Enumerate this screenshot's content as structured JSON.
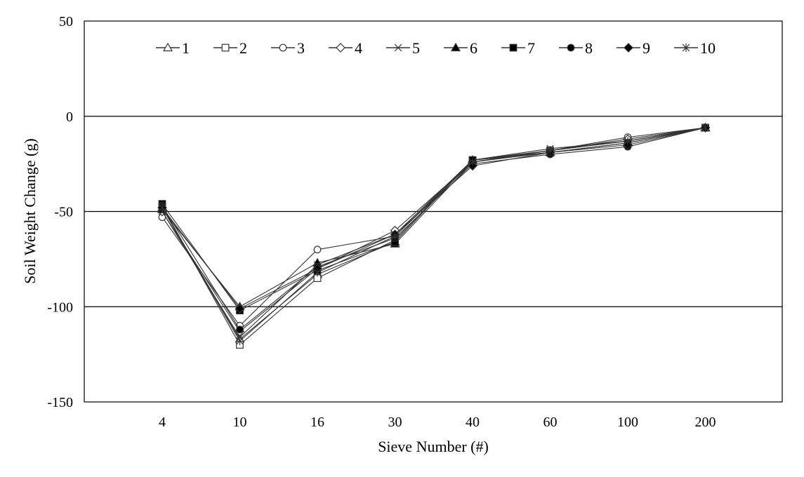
{
  "chart_data": {
    "type": "line",
    "title": "",
    "xlabel": "Sieve Number (#)",
    "ylabel": "Soil Weight Change (g)",
    "categories": [
      "4",
      "10",
      "16",
      "30",
      "40",
      "60",
      "100",
      "200"
    ],
    "ylim": [
      -150,
      50
    ],
    "yticks": [
      50,
      0,
      -50,
      -100,
      -150
    ],
    "grid": "horizontal",
    "legend_position": "top",
    "line_color": "#333333",
    "series": [
      {
        "name": "1",
        "marker": "triangle-open",
        "values": [
          -48,
          -117,
          -83,
          -66,
          -23,
          -19,
          -14,
          -6
        ]
      },
      {
        "name": "2",
        "marker": "square-open",
        "values": [
          -47,
          -120,
          -85,
          -65,
          -23,
          -18,
          -13,
          -6
        ]
      },
      {
        "name": "3",
        "marker": "circle-open",
        "values": [
          -53,
          -110,
          -70,
          -63,
          -23,
          -18,
          -11,
          -6
        ]
      },
      {
        "name": "4",
        "marker": "diamond-open",
        "values": [
          -50,
          -113,
          -80,
          -60,
          -24,
          -18,
          -12,
          -6
        ]
      },
      {
        "name": "5",
        "marker": "x",
        "values": [
          -50,
          -116,
          -78,
          -62,
          -23,
          -17,
          -13,
          -6
        ]
      },
      {
        "name": "6",
        "marker": "triangle",
        "values": [
          -49,
          -100,
          -77,
          -67,
          -24,
          -19,
          -14,
          -6
        ]
      },
      {
        "name": "7",
        "marker": "square",
        "values": [
          -46,
          -102,
          -81,
          -66,
          -23,
          -19,
          -14,
          -6
        ]
      },
      {
        "name": "8",
        "marker": "circle",
        "values": [
          -47,
          -112,
          -79,
          -64,
          -25,
          -20,
          -16,
          -6
        ]
      },
      {
        "name": "9",
        "marker": "diamond",
        "values": [
          -48,
          -101,
          -80,
          -62,
          -26,
          -19,
          -15,
          -6
        ]
      },
      {
        "name": "10",
        "marker": "star",
        "values": [
          -48,
          -118,
          -82,
          -63,
          -24,
          -18,
          -13,
          -6
        ]
      }
    ]
  }
}
